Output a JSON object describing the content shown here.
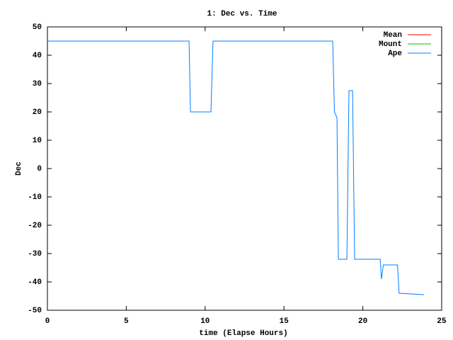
{
  "chart_data": {
    "type": "line",
    "title": "1: Dec vs. Time",
    "xlabel": "time (Elapse Hours)",
    "ylabel": "Dec",
    "xlim": [
      0,
      25
    ],
    "xticks": [
      0,
      5,
      10,
      15,
      20,
      25
    ],
    "ylim": [
      -50,
      50
    ],
    "yticks": [
      -50,
      -40,
      -30,
      -20,
      -10,
      0,
      10,
      20,
      30,
      40,
      50
    ],
    "legend": "top-right",
    "series": [
      {
        "name": "Mean",
        "color": "#ff0000",
        "x": [
          0,
          8.98,
          null,
          10.5,
          12.5
        ],
        "values": [
          45,
          45,
          null,
          45,
          45
        ]
      },
      {
        "name": "Mount",
        "color": "#00c000",
        "x": [
          0,
          8.98,
          null,
          10.5,
          12.5
        ],
        "values": [
          45,
          45,
          null,
          45,
          45
        ]
      },
      {
        "name": "Ape",
        "color": "#0080ff",
        "x": [
          0,
          8.98,
          9.07,
          10.37,
          10.5,
          18.09,
          18.2,
          18.36,
          18.45,
          18.99,
          19.12,
          19.35,
          19.48,
          21.1,
          21.18,
          21.3,
          22.2,
          22.3,
          23.88
        ],
        "values": [
          45,
          45,
          20,
          20,
          45,
          45,
          20,
          18,
          -32,
          -32,
          27.5,
          27.5,
          -32,
          -32,
          -39,
          -34,
          -34,
          -44,
          -44.5
        ]
      }
    ]
  }
}
